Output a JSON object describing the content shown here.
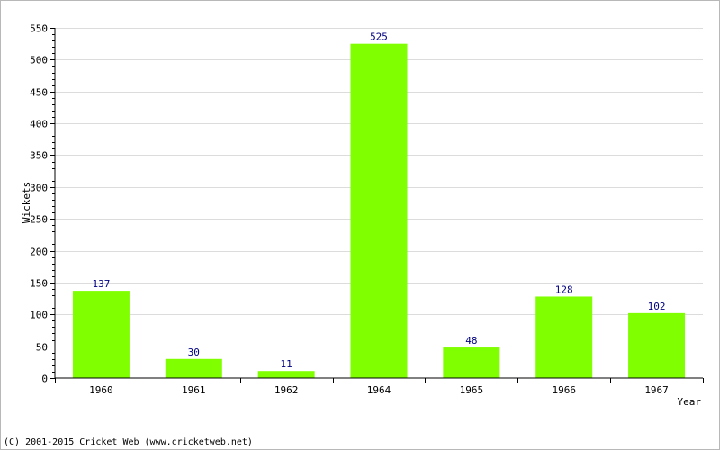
{
  "chart_data": {
    "type": "bar",
    "categories": [
      "1960",
      "1961",
      "1962",
      "1964",
      "1965",
      "1966",
      "1967"
    ],
    "values": [
      137,
      30,
      11,
      525,
      48,
      128,
      102
    ],
    "ylabel": "Wickets",
    "xlabel": "Year",
    "ylim": [
      0,
      550
    ],
    "yticks": [
      0,
      50,
      100,
      150,
      200,
      250,
      300,
      350,
      400,
      450,
      500,
      550
    ],
    "grid": true,
    "bar_color": "#7fff00",
    "value_label_color": "#000080"
  },
  "footer": {
    "credit": "(C) 2001-2015 Cricket Web (www.cricketweb.net)"
  }
}
